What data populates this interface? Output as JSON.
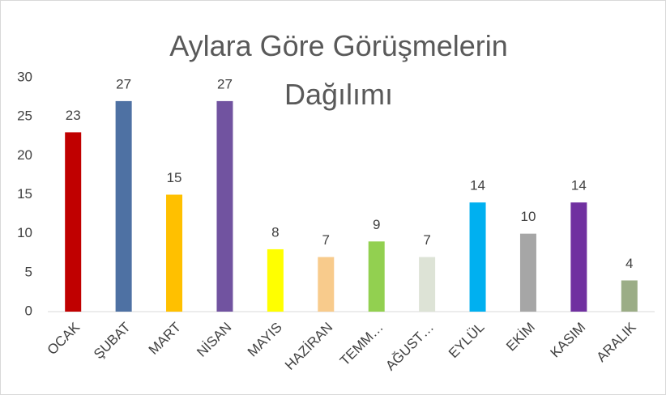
{
  "chart_data": {
    "type": "bar",
    "title": "Aylara Göre Görüşmelerin Dağılımı",
    "categories": [
      "OCAK",
      "ŞUBAT",
      "MART",
      "NİSAN",
      "MAYIS",
      "HAZİRAN",
      "TEMM…",
      "AĞUST…",
      "EYLÜL",
      "EKİM",
      "KASIM",
      "ARALIK"
    ],
    "values": [
      23,
      27,
      15,
      27,
      8,
      7,
      9,
      7,
      14,
      10,
      14,
      4
    ],
    "colors": [
      "#c00000",
      "#4e71a3",
      "#ffc000",
      "#7153a0",
      "#ffff00",
      "#f8cb8c",
      "#92d050",
      "#dde3d6",
      "#00b0f0",
      "#a6a6a6",
      "#7030a0",
      "#9bad86"
    ],
    "ylim": [
      0,
      30
    ],
    "yticks": [
      0,
      5,
      10,
      15,
      20,
      25,
      30
    ],
    "grid": false
  }
}
